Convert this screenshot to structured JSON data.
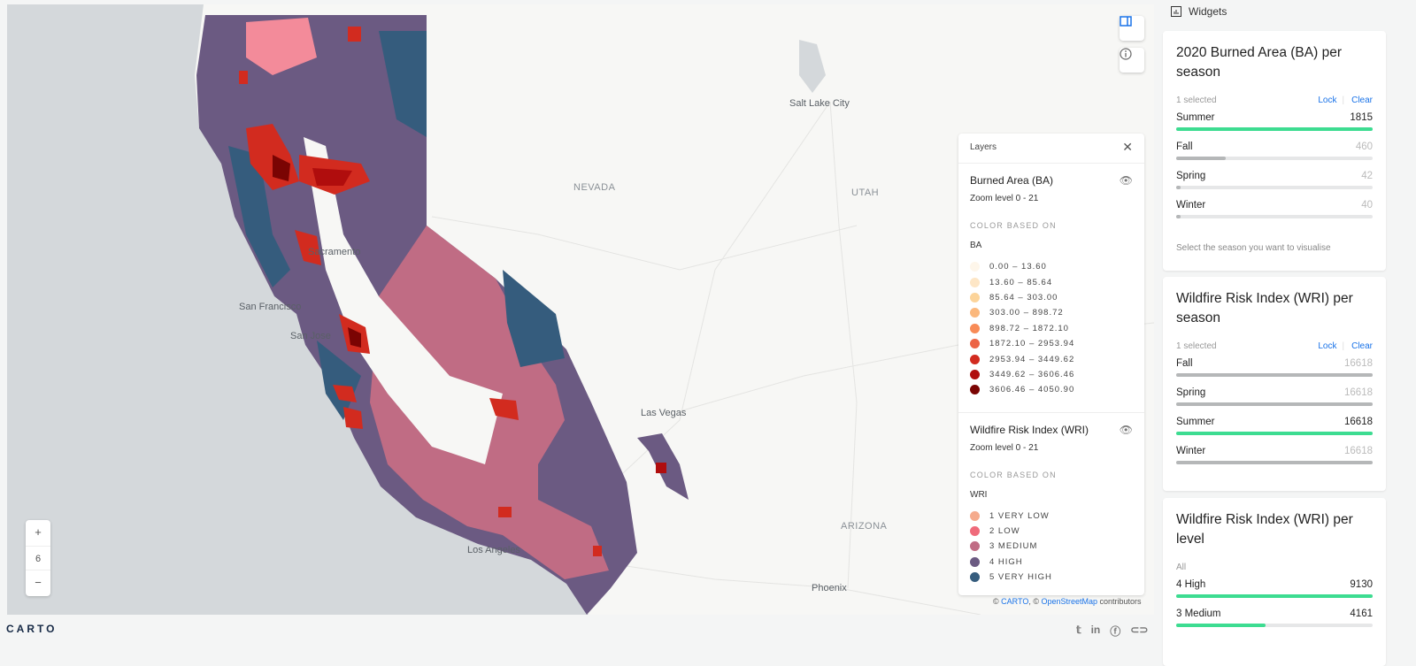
{
  "map": {
    "labels": {
      "salt_lake_city": "Salt Lake City",
      "nevada": "NEVADA",
      "utah": "UTAH",
      "las_vegas": "Las Vegas",
      "arizona": "ARIZONA",
      "phoenix": "Phoenix",
      "san_francisco": "San Francisco",
      "sacramento": "Sacramento",
      "san_jose": "San Jose",
      "los_angeles": "Los Angeles"
    },
    "zoom_level": "6",
    "zoom_in": "+",
    "zoom_out": "−",
    "colors": {
      "ocean": "#d4d8db",
      "land": "#f7f7f5"
    }
  },
  "layers": {
    "title": "Layers",
    "items": [
      {
        "name": "Burned Area (BA)",
        "zoom": "Zoom level 0 - 21",
        "color_based_on": "COLOR BASED ON",
        "variable": "BA",
        "legend": [
          {
            "label": "0.00 – 13.60",
            "color": "#fef6ea"
          },
          {
            "label": "13.60 – 85.64",
            "color": "#fde6c6"
          },
          {
            "label": "85.64 – 303.00",
            "color": "#fcd49a"
          },
          {
            "label": "303.00 – 898.72",
            "color": "#fbb87d"
          },
          {
            "label": "898.72 – 1872.10",
            "color": "#f88b57"
          },
          {
            "label": "1872.10 – 2953.94",
            "color": "#ec6445"
          },
          {
            "label": "2953.94 – 3449.62",
            "color": "#d22b1f"
          },
          {
            "label": "3449.62 – 3606.46",
            "color": "#b00d0d"
          },
          {
            "label": "3606.46 – 4050.90",
            "color": "#7a0403"
          }
        ]
      },
      {
        "name": "Wildfire Risk Index (WRI)",
        "zoom": "Zoom level 0 - 21",
        "color_based_on": "COLOR BASED ON",
        "variable": "WRI",
        "legend": [
          {
            "label": "1 VERY LOW",
            "color": "#f5ab8d"
          },
          {
            "label": "2 LOW",
            "color": "#ef6a7a"
          },
          {
            "label": "3 MEDIUM",
            "color": "#c06c84"
          },
          {
            "label": "4 HIGH",
            "color": "#6b5a82"
          },
          {
            "label": "5 VERY HIGH",
            "color": "#355c7d"
          }
        ]
      }
    ]
  },
  "attribution": {
    "prefix": "© ",
    "carto": "CARTO",
    ",": ", © ",
    "osm": "OpenStreetMap",
    "suffix": " contributors"
  },
  "footer": {
    "logo": "CARTO"
  },
  "panel": {
    "title": "Widgets",
    "widgets": [
      {
        "title": "2020 Burned Area (BA) per season",
        "status": "1 selected",
        "lock": "Lock",
        "clear": "Clear",
        "rows": [
          {
            "label": "Summer",
            "value": "1815",
            "fraction": 1,
            "selected": true
          },
          {
            "label": "Fall",
            "value": "460",
            "fraction": 0.253,
            "selected": false
          },
          {
            "label": "Spring",
            "value": "42",
            "fraction": 0.023,
            "selected": false
          },
          {
            "label": "Winter",
            "value": "40",
            "fraction": 0.022,
            "selected": false
          }
        ],
        "note": "Select the season you want to visualise"
      },
      {
        "title": "Wildfire Risk Index (WRI) per season",
        "status": "1 selected",
        "lock": "Lock",
        "clear": "Clear",
        "rows": [
          {
            "label": "Fall",
            "value": "16618",
            "fraction": 1,
            "selected": false
          },
          {
            "label": "Spring",
            "value": "16618",
            "fraction": 1,
            "selected": false
          },
          {
            "label": "Summer",
            "value": "16618",
            "fraction": 1,
            "selected": true
          },
          {
            "label": "Winter",
            "value": "16618",
            "fraction": 1,
            "selected": false
          }
        ]
      },
      {
        "title": "Wildfire Risk Index (WRI) per level",
        "status": "All",
        "rows": [
          {
            "label": "4 High",
            "value": "9130",
            "fraction": 1,
            "selected": true
          },
          {
            "label": "3 Medium",
            "value": "4161",
            "fraction": 0.456,
            "selected": true
          }
        ]
      }
    ]
  }
}
